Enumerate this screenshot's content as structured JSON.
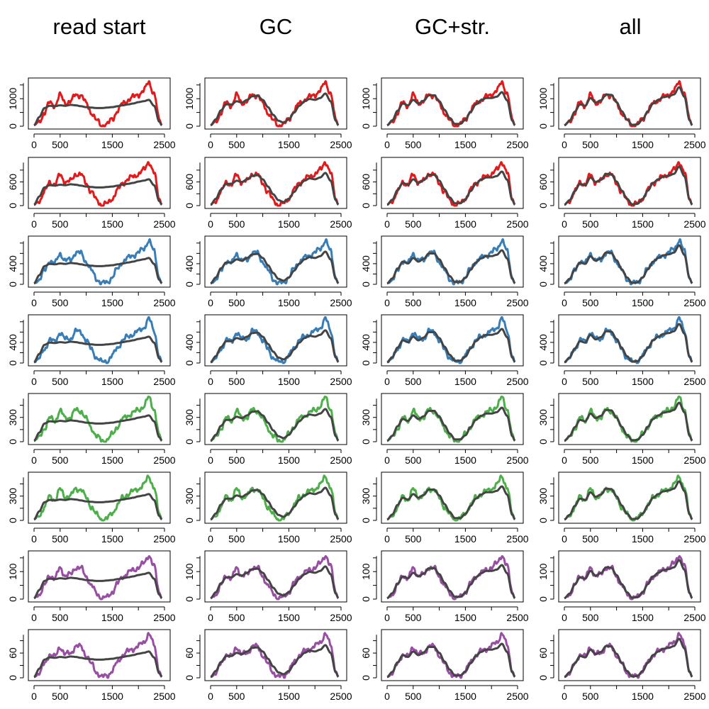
{
  "column_titles": [
    "read start",
    "GC",
    "GC+str.",
    "all"
  ],
  "colors": {
    "red": "#e31a1c",
    "blue": "#377eb8",
    "green": "#4daf4a",
    "purple": "#984ea3",
    "fit": "#444444"
  },
  "chart_data": {
    "type": "line",
    "layout": "8 rows x 4 columns of panels",
    "columns": [
      "read start",
      "GC",
      "GC+str.",
      "all"
    ],
    "x_axis": {
      "range": [
        0,
        2500
      ],
      "ticks": [
        "0",
        "500",
        "1500",
        "2500"
      ]
    },
    "rows": [
      {
        "color": "red",
        "y_ticks": [
          "0",
          "1000"
        ],
        "ylim": [
          0,
          1650
        ]
      },
      {
        "color": "red",
        "y_ticks": [
          "0",
          "600"
        ],
        "ylim": [
          0,
          1150
        ]
      },
      {
        "color": "blue",
        "y_ticks": [
          "0",
          "400"
        ],
        "ylim": [
          0,
          880
        ]
      },
      {
        "color": "blue",
        "y_ticks": [
          "0",
          "400"
        ],
        "ylim": [
          0,
          880
        ]
      },
      {
        "color": "green",
        "y_ticks": [
          "0",
          "300"
        ],
        "ylim": [
          0,
          560
        ]
      },
      {
        "color": "green",
        "y_ticks": [
          "0",
          "300"
        ],
        "ylim": [
          0,
          560
        ]
      },
      {
        "color": "purple",
        "y_ticks": [
          "0",
          "100"
        ],
        "ylim": [
          0,
          165
        ]
      },
      {
        "color": "purple",
        "y_ticks": [
          "0",
          "60"
        ],
        "ylim": [
          0,
          110
        ]
      }
    ],
    "observed_profile": {
      "x": [
        0,
        100,
        200,
        300,
        400,
        500,
        600,
        700,
        800,
        900,
        1000,
        1100,
        1200,
        1300,
        1400,
        1500,
        1600,
        1700,
        1800,
        1900,
        2000,
        2100,
        2200,
        2300,
        2400,
        2450
      ],
      "y": [
        0.02,
        0.1,
        0.3,
        0.52,
        0.46,
        0.68,
        0.52,
        0.54,
        0.7,
        0.68,
        0.5,
        0.3,
        0.12,
        0.02,
        0.04,
        0.16,
        0.34,
        0.5,
        0.58,
        0.64,
        0.7,
        0.78,
        0.97,
        0.72,
        0.15,
        0.02
      ]
    },
    "fitted_profiles": {
      "read start": {
        "x": [
          0,
          100,
          200,
          300,
          400,
          500,
          600,
          700,
          800,
          900,
          1000,
          1100,
          1200,
          1300,
          1400,
          1500,
          1600,
          1700,
          1800,
          1900,
          2000,
          2100,
          2200,
          2300,
          2400,
          2450
        ],
        "y": [
          0.02,
          0.2,
          0.4,
          0.45,
          0.44,
          0.46,
          0.45,
          0.47,
          0.46,
          0.44,
          0.42,
          0.41,
          0.4,
          0.4,
          0.41,
          0.42,
          0.44,
          0.46,
          0.48,
          0.5,
          0.53,
          0.55,
          0.58,
          0.45,
          0.1,
          0.02
        ]
      },
      "GC": {
        "x": [
          0,
          100,
          200,
          300,
          400,
          500,
          600,
          700,
          800,
          900,
          1000,
          1100,
          1200,
          1300,
          1400,
          1500,
          1600,
          1700,
          1800,
          1900,
          2000,
          2100,
          2200,
          2300,
          2400,
          2450
        ],
        "y": [
          0.02,
          0.15,
          0.35,
          0.48,
          0.48,
          0.55,
          0.52,
          0.58,
          0.66,
          0.67,
          0.58,
          0.42,
          0.25,
          0.12,
          0.08,
          0.15,
          0.3,
          0.45,
          0.55,
          0.6,
          0.58,
          0.62,
          0.72,
          0.55,
          0.12,
          0.02
        ]
      },
      "GC+str.": {
        "x": [
          0,
          100,
          200,
          300,
          400,
          500,
          600,
          700,
          800,
          900,
          1000,
          1100,
          1200,
          1300,
          1400,
          1500,
          1600,
          1700,
          1800,
          1900,
          2000,
          2100,
          2200,
          2300,
          2400,
          2450
        ],
        "y": [
          0.02,
          0.13,
          0.34,
          0.5,
          0.46,
          0.58,
          0.5,
          0.56,
          0.68,
          0.68,
          0.55,
          0.36,
          0.18,
          0.05,
          0.05,
          0.14,
          0.32,
          0.48,
          0.57,
          0.62,
          0.62,
          0.65,
          0.75,
          0.57,
          0.12,
          0.02
        ]
      },
      "all": {
        "x": [
          0,
          100,
          200,
          300,
          400,
          500,
          600,
          700,
          800,
          900,
          1000,
          1100,
          1200,
          1300,
          1400,
          1500,
          1600,
          1700,
          1800,
          1900,
          2000,
          2100,
          2200,
          2300,
          2400,
          2450
        ],
        "y": [
          0.02,
          0.12,
          0.32,
          0.48,
          0.45,
          0.62,
          0.52,
          0.57,
          0.7,
          0.69,
          0.53,
          0.33,
          0.15,
          0.03,
          0.04,
          0.15,
          0.33,
          0.5,
          0.58,
          0.64,
          0.66,
          0.7,
          0.86,
          0.65,
          0.13,
          0.02
        ]
      }
    },
    "grid": false,
    "legend": "none"
  }
}
